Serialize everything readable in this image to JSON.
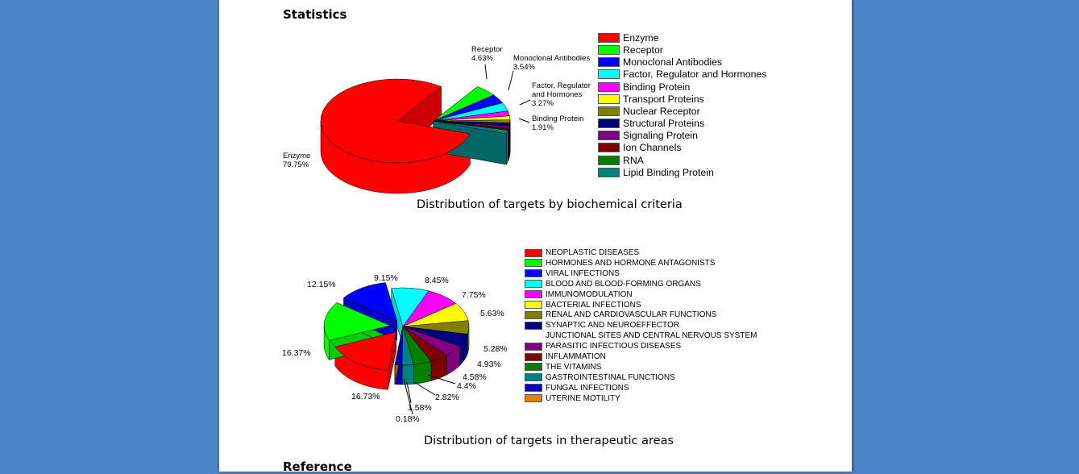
{
  "page": {
    "heading": "Statistics",
    "next_heading": "Reference"
  },
  "chart_data": [
    {
      "type": "pie",
      "style": "3d-exploded",
      "title": "Distribution of targets by biochemical criteria",
      "legend_position": "right",
      "categories": [
        "Enzyme",
        "Receptor",
        "Monoclonal Antibodies",
        "Factor, Regulator and Hormones",
        "Binding Protein",
        "Transport Proteins",
        "Nuclear Receptor",
        "Structural Proteins",
        "Signaling Protein",
        "Ion Channels",
        "RNA",
        "Lipid Binding Protein"
      ],
      "values": [
        79.75,
        4.63,
        3.54,
        3.27,
        1.91,
        1.5,
        1.2,
        1.2,
        0.8,
        0.5,
        0.3,
        1.4
      ],
      "colors": [
        "#ff0000",
        "#00ff00",
        "#0000ff",
        "#00ffff",
        "#ff00ff",
        "#ffff00",
        "#808000",
        "#000080",
        "#800080",
        "#800000",
        "#008000",
        "#008080"
      ],
      "data_labels": [
        {
          "name": "Enzyme",
          "value": "79.75%"
        },
        {
          "name": "Receptor",
          "value": "4.63%"
        },
        {
          "name": "Monoclonal Antibodies",
          "value": "3.54%"
        },
        {
          "name_lines": [
            "Factor, Regulator",
            "and Hormones"
          ],
          "value": "3.27%"
        },
        {
          "name": "Binding Protein",
          "value": "1.91%"
        }
      ]
    },
    {
      "type": "pie",
      "style": "3d-exploded",
      "title": "Distribution of targets in therapeutic areas",
      "legend_position": "right",
      "categories": [
        "NEOPLASTIC DISEASES",
        "HORMONES AND HORMONE ANTAGONISTS",
        "VIRAL INFECTIONS",
        "BLOOD AND BLOOD-FORMING ORGANS",
        "IMMUNOMODULATION",
        "BACTERIAL INFECTIONS",
        "RENAL AND CARDIOVASCULAR FUNCTIONS",
        "SYNAPTIC AND NEUROEFFECTOR",
        "PARASITIC INFECTIOUS DISEASES",
        "INFLAMMATION",
        "THE VITAMINS",
        "GASTROINTESTINAL FUNCTIONS",
        "FUNGAL INFECTIONS",
        "UTERINE MOTILITY"
      ],
      "legend_continuation": "JUNCTIONAL SITES AND CENTRAL NERVOUS SYSTEM",
      "values": [
        16.73,
        16.37,
        12.15,
        9.15,
        8.45,
        7.75,
        5.63,
        5.28,
        4.93,
        4.58,
        4.4,
        2.82,
        1.58,
        0.18
      ],
      "colors": [
        "#ff0000",
        "#00ff00",
        "#0000ff",
        "#00ffff",
        "#ff00ff",
        "#ffff00",
        "#808000",
        "#000080",
        "#800080",
        "#800000",
        "#008000",
        "#008080",
        "#0000c0",
        "#e08000"
      ],
      "data_labels": [
        "16.73%",
        "16.37%",
        "12.15%",
        "9.15%",
        "8.45%",
        "7.75%",
        "5.63%",
        "5.28%",
        "4.93%",
        "4.58%",
        "4.4%",
        "2.82%",
        "1.58%",
        "0.18%"
      ]
    }
  ]
}
